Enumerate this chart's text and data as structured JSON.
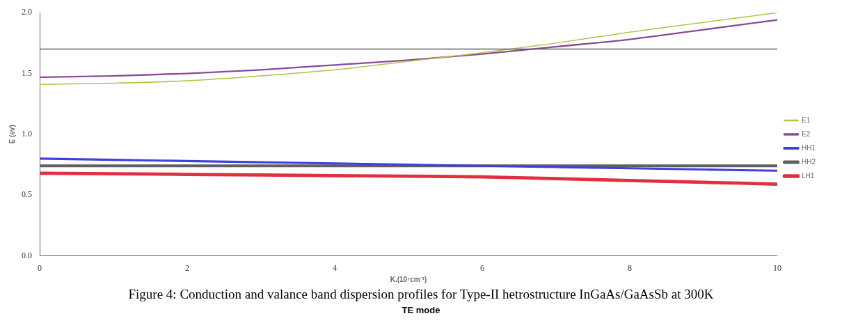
{
  "chart_data": {
    "type": "line",
    "xlabel": "K.(10⁷cm⁻¹)",
    "ylabel": "E (ev)",
    "x": [
      0,
      1,
      2,
      3,
      4,
      5,
      6,
      7,
      8,
      9,
      10
    ],
    "xlim": [
      0,
      10
    ],
    "xticks": [
      0,
      2,
      4,
      6,
      8,
      10
    ],
    "ylim": [
      0,
      2
    ],
    "yticks": [
      {
        "value": 0,
        "label": "0.0"
      },
      {
        "value": 0.5,
        "label": "0.5"
      },
      {
        "value": 1,
        "label": "1.0"
      },
      {
        "value": 1.5,
        "label": "1.5"
      },
      {
        "value": 2,
        "label": "2.0"
      }
    ],
    "series": [
      {
        "name": "E1",
        "color": "#b8c040",
        "values": [
          1.41,
          1.42,
          1.44,
          1.48,
          1.53,
          1.6,
          1.67,
          1.75,
          1.84,
          1.92,
          2.0
        ]
      },
      {
        "name": "E2",
        "color": "#8a4a9a",
        "values": [
          1.47,
          1.48,
          1.5,
          1.53,
          1.57,
          1.61,
          1.66,
          1.72,
          1.78,
          1.86,
          1.94
        ]
      },
      {
        "name": "HH1",
        "color": "#4040e0",
        "values": [
          0.8,
          0.79,
          0.78,
          0.77,
          0.76,
          0.75,
          0.74,
          0.73,
          0.72,
          0.71,
          0.7
        ]
      },
      {
        "name": "HH2",
        "color": "#606060",
        "values": [
          0.74,
          0.74,
          0.74,
          0.74,
          0.74,
          0.74,
          0.74,
          0.74,
          0.74,
          0.74,
          0.74
        ]
      },
      {
        "name": "LH1",
        "color": "#e03040",
        "values": [
          0.68,
          0.675,
          0.67,
          0.665,
          0.66,
          0.655,
          0.65,
          0.635,
          0.62,
          0.605,
          0.59
        ]
      }
    ],
    "ref_lines": [
      {
        "axis": "y",
        "value": 1.7,
        "color": "#606060"
      }
    ],
    "legend": "right",
    "grid": false,
    "annotations": [
      "Figure 4: Conduction and valance band dispersion profiles for Type-II hetrostructure InGaAs/GaAsSb at 300K",
      "TE mode"
    ]
  }
}
